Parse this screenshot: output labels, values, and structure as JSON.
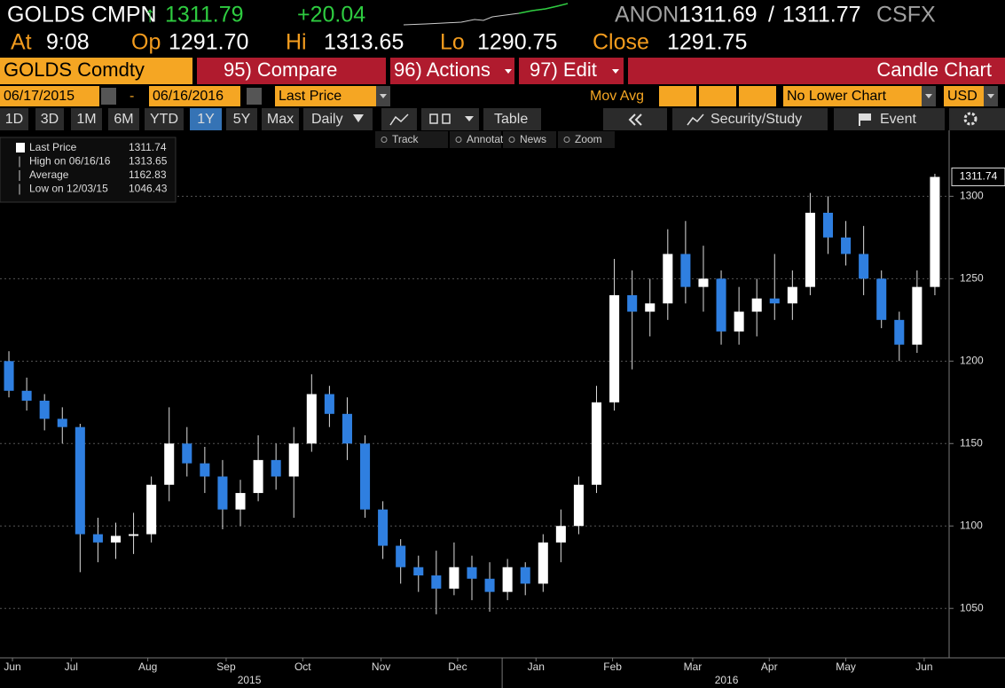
{
  "header": {
    "ticker": "GOLDS",
    "source": "CMPN",
    "arrow": "↑",
    "last": "1311.79",
    "change": "+20.04",
    "ask_source": "ANON",
    "bid": "1311.69",
    "separator": "/",
    "ask": "1311.77",
    "venue": "CSFX"
  },
  "quote": {
    "time_label": "At",
    "time": "9:08",
    "open_label": "Op",
    "open": "1291.70",
    "high_label": "Hi",
    "high": "1313.65",
    "low_label": "Lo",
    "low": "1290.75",
    "close_label": "Close",
    "close": "1291.75"
  },
  "menu": {
    "security": "GOLDS Comdty",
    "compare": "95) Compare",
    "actions": "96) Actions",
    "edit": "97) Edit",
    "chart_type": "Candle Chart"
  },
  "controls": {
    "start_date": "06/17/2015",
    "dash": "-",
    "end_date": "06/16/2016",
    "field": "Last Price",
    "study": "Mov Avg",
    "lower_chart": "No Lower Chart",
    "currency": "USD"
  },
  "periods": [
    "1D",
    "3D",
    "1M",
    "6M",
    "YTD",
    "1Y",
    "5Y",
    "Max"
  ],
  "selected_period": 5,
  "frequency": "Daily",
  "table": "Table",
  "study_button": "Security/Study",
  "event": "Event",
  "tools": [
    "Track",
    "Annotate",
    "News",
    "Zoom"
  ],
  "chart_data": {
    "type": "candlestick",
    "up_color": "#ffffff",
    "down_color": "#2f7fe0",
    "x": [
      0.5,
      1.5,
      2.5,
      3.5,
      4.5,
      5.5,
      6.5,
      7.5,
      8.5,
      9.5,
      10.5,
      11.5,
      12.5,
      13.5,
      14.5,
      15.5,
      16.5,
      17.5,
      18.5,
      19.5,
      20.5,
      21.5,
      22.5,
      23.5,
      24.5,
      25.5,
      26.5,
      27.5,
      28.5,
      29.5,
      30.5,
      31.5,
      32.5,
      33.5,
      34.5,
      35.5,
      36.5,
      37.5,
      38.5,
      39.5,
      40.5,
      41.5,
      42.5,
      43.5,
      44.5,
      45.5,
      46.5,
      47.5,
      48.5,
      49.5,
      50.5,
      51.5,
      52.5
    ],
    "open": [
      1200,
      1182,
      1176,
      1165,
      1160,
      1095,
      1090,
      1094,
      1095,
      1125,
      1150,
      1138,
      1130,
      1110,
      1120,
      1140,
      1130,
      1150,
      1180,
      1168,
      1150,
      1110,
      1088,
      1075,
      1070,
      1062,
      1075,
      1068,
      1060,
      1075,
      1065,
      1090,
      1100,
      1125,
      1175,
      1240,
      1230,
      1235,
      1265,
      1245,
      1250,
      1218,
      1230,
      1238,
      1235,
      1245,
      1290,
      1275,
      1265,
      1250,
      1225,
      1210,
      1245
    ],
    "high": [
      1206,
      1190,
      1180,
      1172,
      1162,
      1105,
      1102,
      1108,
      1130,
      1172,
      1160,
      1148,
      1140,
      1128,
      1155,
      1150,
      1160,
      1192,
      1185,
      1178,
      1155,
      1115,
      1092,
      1082,
      1085,
      1090,
      1082,
      1078,
      1080,
      1078,
      1095,
      1110,
      1130,
      1185,
      1262,
      1255,
      1250,
      1280,
      1285,
      1270,
      1255,
      1245,
      1250,
      1265,
      1255,
      1302,
      1300,
      1285,
      1282,
      1255,
      1230,
      1255,
      1313.65
    ],
    "low": [
      1178,
      1170,
      1158,
      1150,
      1072,
      1078,
      1080,
      1083,
      1090,
      1115,
      1130,
      1120,
      1098,
      1100,
      1115,
      1122,
      1105,
      1145,
      1160,
      1140,
      1105,
      1080,
      1065,
      1060,
      1046.43,
      1058,
      1055,
      1048,
      1055,
      1058,
      1060,
      1078,
      1095,
      1120,
      1170,
      1195,
      1215,
      1225,
      1235,
      1230,
      1210,
      1210,
      1215,
      1225,
      1225,
      1240,
      1265,
      1258,
      1240,
      1220,
      1200,
      1205,
      1240
    ],
    "close": [
      1182,
      1176,
      1165,
      1160,
      1095,
      1090,
      1094,
      1095,
      1125,
      1150,
      1138,
      1130,
      1110,
      1120,
      1140,
      1130,
      1150,
      1180,
      1168,
      1150,
      1110,
      1088,
      1075,
      1070,
      1062,
      1075,
      1068,
      1060,
      1075,
      1065,
      1090,
      1100,
      1125,
      1175,
      1240,
      1230,
      1235,
      1265,
      1245,
      1250,
      1218,
      1230,
      1238,
      1235,
      1245,
      1290,
      1275,
      1265,
      1250,
      1225,
      1210,
      1245,
      1311.74
    ],
    "xlim": [
      0,
      53.3
    ],
    "xticks": [
      {
        "value": 0.7,
        "label": "Jun"
      },
      {
        "value": 4.0,
        "label": "Jul"
      },
      {
        "value": 8.3,
        "label": "Aug"
      },
      {
        "value": 12.7,
        "label": "Sep"
      },
      {
        "value": 17.0,
        "label": "Oct"
      },
      {
        "value": 21.4,
        "label": "Nov"
      },
      {
        "value": 25.7,
        "label": "Dec"
      },
      {
        "value": 30.1,
        "label": "Jan"
      },
      {
        "value": 34.4,
        "label": "Feb"
      },
      {
        "value": 38.9,
        "label": "Mar"
      },
      {
        "value": 43.2,
        "label": "Apr"
      },
      {
        "value": 47.5,
        "label": "May"
      },
      {
        "value": 51.9,
        "label": "Jun"
      }
    ],
    "year_ticks": [
      {
        "value": 14.0,
        "label": "2015"
      },
      {
        "value": 40.8,
        "label": "2016"
      }
    ],
    "year_divider": 28.2,
    "ylim": [
      1020,
      1340
    ],
    "yticks": [
      1050,
      1100,
      1150,
      1200,
      1250,
      1300
    ],
    "grid": true,
    "last_price": 1311.74,
    "legend": [
      {
        "label": "Last Price",
        "value": 1311.74
      },
      {
        "label": "High on 06/16/16",
        "value": 1313.65
      },
      {
        "label": "Average",
        "value": 1162.83
      },
      {
        "label": "Low on 12/03/15",
        "value": 1046.43
      }
    ]
  }
}
